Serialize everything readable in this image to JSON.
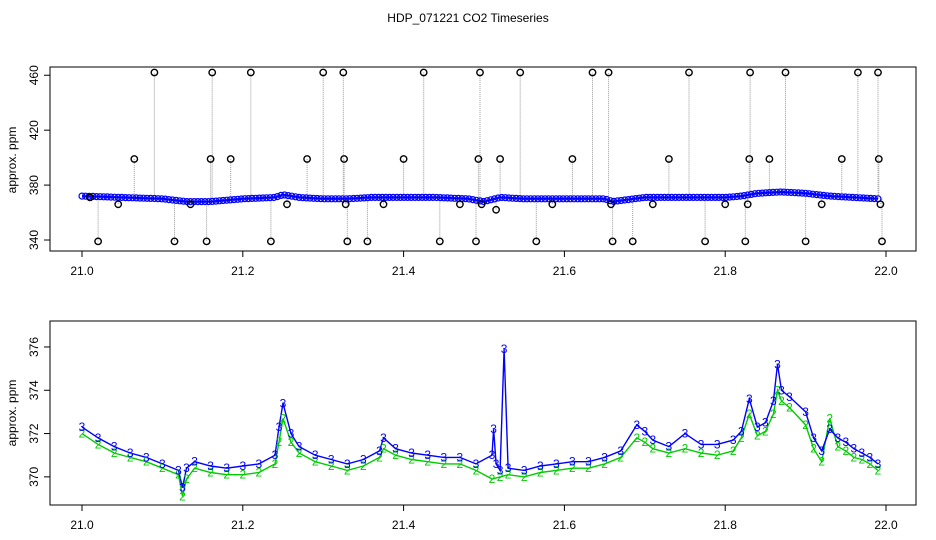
{
  "figure_title": "HDP_071221  CO2 Timeseries",
  "colors": {
    "axis": "#000000",
    "raw": "#000000",
    "gray_line": "#9a9a9a",
    "series3": "#0000ff",
    "series2": "#00cc00",
    "cyan": "#00dddd"
  },
  "chart_data": [
    {
      "type": "scatter",
      "title": "",
      "xlabel": "",
      "ylabel": "approx. ppm",
      "xlim": [
        21.0,
        22.0
      ],
      "ylim": [
        332,
        466
      ],
      "xticks": [
        "21.0",
        "21.2",
        "21.4",
        "21.6",
        "21.8",
        "22.0"
      ],
      "yticks": [
        "340",
        "380",
        "420",
        "460"
      ],
      "grid": false,
      "legend": "none",
      "baseline": [
        [
          21.0,
          372
        ],
        [
          21.05,
          371
        ],
        [
          21.1,
          370
        ],
        [
          21.13,
          368
        ],
        [
          21.16,
          368
        ],
        [
          21.2,
          370
        ],
        [
          21.24,
          371
        ],
        [
          21.25,
          373
        ],
        [
          21.27,
          371
        ],
        [
          21.3,
          370
        ],
        [
          21.33,
          370
        ],
        [
          21.36,
          371
        ],
        [
          21.4,
          371
        ],
        [
          21.44,
          371
        ],
        [
          21.48,
          370
        ],
        [
          21.5,
          368
        ],
        [
          21.52,
          371
        ],
        [
          21.55,
          370
        ],
        [
          21.6,
          370
        ],
        [
          21.65,
          370
        ],
        [
          21.66,
          368
        ],
        [
          21.7,
          371
        ],
        [
          21.75,
          371
        ],
        [
          21.8,
          371
        ],
        [
          21.82,
          372
        ],
        [
          21.84,
          374
        ],
        [
          21.87,
          375
        ],
        [
          21.9,
          374
        ],
        [
          21.93,
          372
        ],
        [
          21.96,
          371
        ],
        [
          21.99,
          370
        ]
      ],
      "outliers": [
        [
          21.01,
          371
        ],
        [
          21.02,
          339
        ],
        [
          21.045,
          366
        ],
        [
          21.065,
          399
        ],
        [
          21.09,
          462
        ],
        [
          21.115,
          339
        ],
        [
          21.135,
          366
        ],
        [
          21.155,
          339
        ],
        [
          21.16,
          399
        ],
        [
          21.162,
          462
        ],
        [
          21.185,
          399
        ],
        [
          21.21,
          462
        ],
        [
          21.235,
          339
        ],
        [
          21.255,
          366
        ],
        [
          21.28,
          399
        ],
        [
          21.3,
          462
        ],
        [
          21.325,
          462
        ],
        [
          21.326,
          399
        ],
        [
          21.328,
          366
        ],
        [
          21.33,
          339
        ],
        [
          21.355,
          339
        ],
        [
          21.375,
          366
        ],
        [
          21.4,
          399
        ],
        [
          21.425,
          462
        ],
        [
          21.445,
          339
        ],
        [
          21.47,
          366
        ],
        [
          21.49,
          339
        ],
        [
          21.493,
          399
        ],
        [
          21.495,
          462
        ],
        [
          21.497,
          366
        ],
        [
          21.515,
          362
        ],
        [
          21.52,
          399
        ],
        [
          21.545,
          462
        ],
        [
          21.565,
          339
        ],
        [
          21.585,
          366
        ],
        [
          21.61,
          399
        ],
        [
          21.635,
          462
        ],
        [
          21.655,
          462
        ],
        [
          21.658,
          366
        ],
        [
          21.66,
          339
        ],
        [
          21.685,
          339
        ],
        [
          21.71,
          366
        ],
        [
          21.73,
          399
        ],
        [
          21.755,
          462
        ],
        [
          21.775,
          339
        ],
        [
          21.8,
          366
        ],
        [
          21.825,
          339
        ],
        [
          21.828,
          366
        ],
        [
          21.83,
          399
        ],
        [
          21.831,
          462
        ],
        [
          21.855,
          399
        ],
        [
          21.875,
          462
        ],
        [
          21.9,
          339
        ],
        [
          21.92,
          366
        ],
        [
          21.945,
          399
        ],
        [
          21.965,
          462
        ],
        [
          21.99,
          462
        ],
        [
          21.991,
          399
        ],
        [
          21.993,
          366
        ],
        [
          21.995,
          339
        ]
      ]
    },
    {
      "type": "line",
      "title": "",
      "xlabel": "",
      "ylabel": "approx. ppm",
      "xlim": [
        21.0,
        22.0
      ],
      "ylim": [
        368.7,
        377.2
      ],
      "xticks": [
        "21.0",
        "21.2",
        "21.4",
        "21.6",
        "21.8",
        "22.0"
      ],
      "yticks": [
        "370",
        "372",
        "374",
        "376"
      ],
      "grid": false,
      "legend": "none",
      "series": [
        {
          "marker": "3",
          "points": [
            [
              21.0,
              372.3
            ],
            [
              21.02,
              371.8
            ],
            [
              21.04,
              371.4
            ],
            [
              21.06,
              371.1
            ],
            [
              21.08,
              370.9
            ],
            [
              21.1,
              370.6
            ],
            [
              21.12,
              370.3
            ],
            [
              21.125,
              369.5
            ],
            [
              21.13,
              370.4
            ],
            [
              21.14,
              370.7
            ],
            [
              21.16,
              370.5
            ],
            [
              21.18,
              370.4
            ],
            [
              21.2,
              370.5
            ],
            [
              21.22,
              370.6
            ],
            [
              21.24,
              371.0
            ],
            [
              21.245,
              372.3
            ],
            [
              21.25,
              373.4
            ],
            [
              21.26,
              372.0
            ],
            [
              21.27,
              371.4
            ],
            [
              21.29,
              371.0
            ],
            [
              21.31,
              370.8
            ],
            [
              21.33,
              370.6
            ],
            [
              21.35,
              370.8
            ],
            [
              21.37,
              371.2
            ],
            [
              21.375,
              371.8
            ],
            [
              21.39,
              371.3
            ],
            [
              21.41,
              371.1
            ],
            [
              21.43,
              371.0
            ],
            [
              21.45,
              370.9
            ],
            [
              21.47,
              370.9
            ],
            [
              21.49,
              370.6
            ],
            [
              21.51,
              371.0
            ],
            [
              21.512,
              372.2
            ],
            [
              21.515,
              370.6
            ],
            [
              21.52,
              370.3
            ],
            [
              21.525,
              375.9
            ],
            [
              21.53,
              370.4
            ],
            [
              21.55,
              370.3
            ],
            [
              21.57,
              370.5
            ],
            [
              21.59,
              370.6
            ],
            [
              21.61,
              370.7
            ],
            [
              21.63,
              370.7
            ],
            [
              21.65,
              370.9
            ],
            [
              21.67,
              371.2
            ],
            [
              21.69,
              372.4
            ],
            [
              21.7,
              372.1
            ],
            [
              21.71,
              371.7
            ],
            [
              21.73,
              371.4
            ],
            [
              21.75,
              372.0
            ],
            [
              21.77,
              371.5
            ],
            [
              21.79,
              371.5
            ],
            [
              21.81,
              371.7
            ],
            [
              21.82,
              372.1
            ],
            [
              21.83,
              373.6
            ],
            [
              21.84,
              372.3
            ],
            [
              21.85,
              372.5
            ],
            [
              21.86,
              373.5
            ],
            [
              21.865,
              375.2
            ],
            [
              21.87,
              374.0
            ],
            [
              21.88,
              373.7
            ],
            [
              21.9,
              373.0
            ],
            [
              21.91,
              371.8
            ],
            [
              21.92,
              371.2
            ],
            [
              21.93,
              372.2
            ],
            [
              21.94,
              371.8
            ],
            [
              21.95,
              371.6
            ],
            [
              21.96,
              371.3
            ],
            [
              21.97,
              371.1
            ],
            [
              21.98,
              370.9
            ],
            [
              21.99,
              370.6
            ]
          ]
        },
        {
          "marker": "2",
          "points": [
            [
              21.0,
              372.0
            ],
            [
              21.02,
              371.5
            ],
            [
              21.04,
              371.1
            ],
            [
              21.06,
              370.9
            ],
            [
              21.08,
              370.7
            ],
            [
              21.1,
              370.4
            ],
            [
              21.12,
              370.1
            ],
            [
              21.125,
              369.1
            ],
            [
              21.13,
              369.9
            ],
            [
              21.14,
              370.4
            ],
            [
              21.16,
              370.2
            ],
            [
              21.18,
              370.1
            ],
            [
              21.2,
              370.1
            ],
            [
              21.22,
              370.2
            ],
            [
              21.24,
              370.6
            ],
            [
              21.245,
              371.6
            ],
            [
              21.25,
              372.7
            ],
            [
              21.26,
              371.6
            ],
            [
              21.27,
              371.1
            ],
            [
              21.29,
              370.7
            ],
            [
              21.31,
              370.5
            ],
            [
              21.33,
              370.3
            ],
            [
              21.35,
              370.5
            ],
            [
              21.37,
              370.9
            ],
            [
              21.375,
              371.3
            ],
            [
              21.39,
              371.0
            ],
            [
              21.41,
              370.8
            ],
            [
              21.43,
              370.7
            ],
            [
              21.45,
              370.6
            ],
            [
              21.47,
              370.6
            ],
            [
              21.49,
              370.3
            ],
            [
              21.51,
              369.9
            ],
            [
              21.52,
              370.0
            ],
            [
              21.53,
              370.1
            ],
            [
              21.55,
              370.0
            ],
            [
              21.57,
              370.2
            ],
            [
              21.59,
              370.3
            ],
            [
              21.61,
              370.4
            ],
            [
              21.63,
              370.4
            ],
            [
              21.65,
              370.6
            ],
            [
              21.67,
              370.9
            ],
            [
              21.69,
              371.8
            ],
            [
              21.7,
              371.6
            ],
            [
              21.71,
              371.3
            ],
            [
              21.73,
              371.1
            ],
            [
              21.75,
              371.3
            ],
            [
              21.77,
              371.1
            ],
            [
              21.79,
              371.0
            ],
            [
              21.81,
              371.2
            ],
            [
              21.82,
              371.8
            ],
            [
              21.83,
              372.9
            ],
            [
              21.84,
              371.9
            ],
            [
              21.85,
              372.1
            ],
            [
              21.86,
              372.9
            ],
            [
              21.865,
              374.0
            ],
            [
              21.87,
              373.5
            ],
            [
              21.88,
              373.2
            ],
            [
              21.9,
              372.4
            ],
            [
              21.91,
              371.3
            ],
            [
              21.92,
              370.7
            ],
            [
              21.93,
              372.7
            ],
            [
              21.94,
              371.4
            ],
            [
              21.95,
              371.2
            ],
            [
              21.96,
              370.9
            ],
            [
              21.97,
              370.8
            ],
            [
              21.98,
              370.6
            ],
            [
              21.99,
              370.3
            ]
          ]
        }
      ]
    }
  ]
}
